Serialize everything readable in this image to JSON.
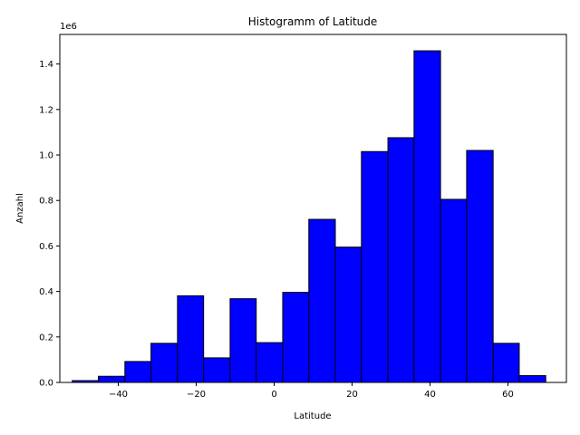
{
  "chart_data": {
    "type": "bar",
    "title": "Histogramm of Latitude",
    "xlabel": "Latitude",
    "ylabel": "Anzahl",
    "y_offset_label": "1e6",
    "bar_color": "#0000ff",
    "edge_color": "#000000",
    "bin_edges": [
      -51.8,
      -45.1,
      -38.3,
      -31.6,
      -24.8,
      -18.1,
      -11.3,
      -4.6,
      2.2,
      8.9,
      15.7,
      22.4,
      29.2,
      35.9,
      42.7,
      49.4,
      56.2,
      62.9,
      69.7
    ],
    "values": [
      8000,
      27000,
      92000,
      172000,
      381000,
      108000,
      368000,
      175000,
      396000,
      717000,
      595000,
      1015000,
      1076000,
      1458000,
      805000,
      1020000,
      172000,
      30000
    ],
    "xlim": [
      -55,
      75
    ],
    "ylim": [
      0,
      1530000
    ],
    "x_ticks": [
      -40,
      -20,
      0,
      20,
      40,
      60
    ],
    "x_tick_labels": [
      "−40",
      "−20",
      "0",
      "20",
      "40",
      "60"
    ],
    "y_ticks": [
      0,
      200000,
      400000,
      600000,
      800000,
      1000000,
      1200000,
      1400000
    ],
    "y_tick_labels": [
      "0.0",
      "0.2",
      "0.4",
      "0.6",
      "0.8",
      "1.0",
      "1.2",
      "1.4"
    ],
    "grid": false,
    "legend": "none"
  }
}
